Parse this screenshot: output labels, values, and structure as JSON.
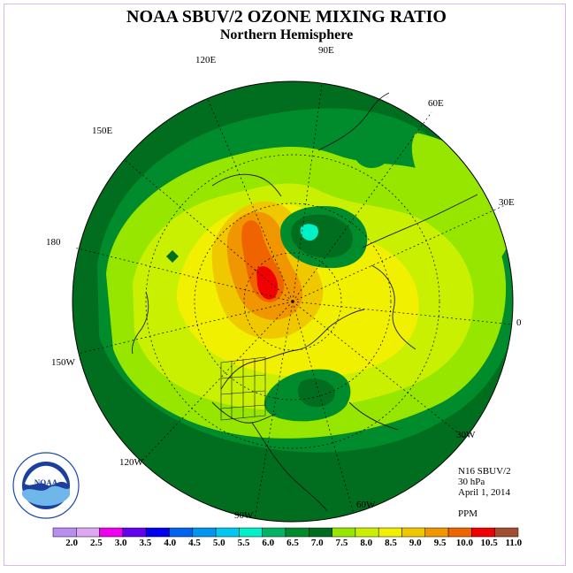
{
  "header": {
    "title": "NOAA SBUV/2 OZONE MIXING RATIO",
    "subtitle": "Northern Hemisphere"
  },
  "longitude_labels": [
    "90E",
    "60E",
    "30E",
    "0",
    "30W",
    "60W",
    "90W",
    "120W",
    "150W",
    "180",
    "150E",
    "120E"
  ],
  "info": {
    "instrument": "N16 SBUV/2",
    "level": "30 hPa",
    "date": "April 1, 2014",
    "units": "PPM"
  },
  "colorbar": {
    "labels": [
      "2.0",
      "2.5",
      "3.0",
      "3.5",
      "4.0",
      "4.5",
      "5.0",
      "5.5",
      "6.0",
      "6.5",
      "7.0",
      "7.5",
      "8.0",
      "8.5",
      "9.0",
      "9.5",
      "10.0",
      "10.5",
      "11.0"
    ],
    "colors": [
      "#b88ef0",
      "#dca8f0",
      "#f000f0",
      "#6400f0",
      "#0000f0",
      "#0064f0",
      "#0096f0",
      "#00c8f0",
      "#00f0c8",
      "#00b464",
      "#008c2d",
      "#006e1e",
      "#96e600",
      "#c8f000",
      "#f0f000",
      "#f0c800",
      "#f09600",
      "#f06400",
      "#f00000",
      "#a05030"
    ]
  },
  "logo": {
    "text": "NOAA",
    "ring_text": "NATIONAL OCEANIC AND ATMOSPHERIC ADMINISTRATION · U.S. DEPARTMENT OF COMMERCE"
  }
}
